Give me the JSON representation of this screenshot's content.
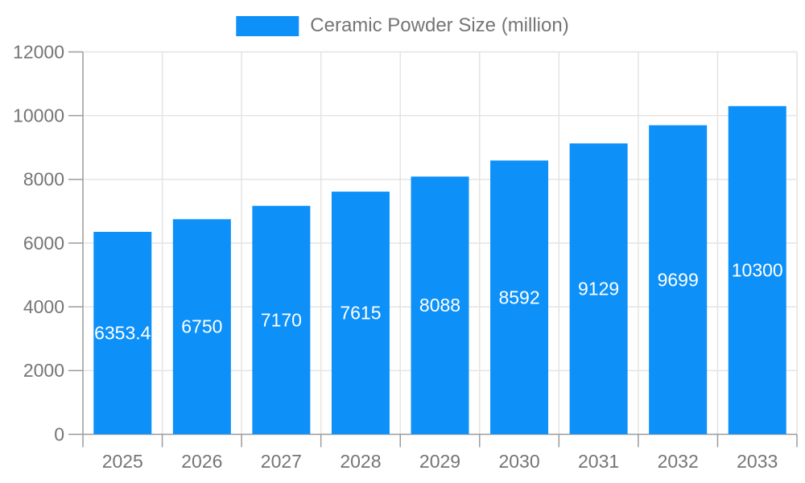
{
  "chart_data": {
    "type": "bar",
    "title": "Ceramic Powder Size (million)",
    "categories": [
      "2025",
      "2026",
      "2027",
      "2028",
      "2029",
      "2030",
      "2031",
      "2032",
      "2033"
    ],
    "values": [
      6353.4,
      6750,
      7170,
      7615,
      8088,
      8592,
      9129,
      9699,
      10300
    ],
    "value_labels": [
      "6353.4",
      "6750",
      "7170",
      "7615",
      "8088",
      "8592",
      "9129",
      "9699",
      "10300"
    ],
    "xlabel": "",
    "ylabel": "",
    "ylim": [
      0,
      12000
    ],
    "ytick_step": 2000,
    "ytick_labels": [
      "0",
      "2000",
      "4000",
      "6000",
      "8000",
      "10000",
      "12000"
    ],
    "grid": true,
    "legend": {
      "position": "top-center",
      "label": "Ceramic Powder Size (million)"
    },
    "colors": {
      "bar": "#0d90f8",
      "bar_value_label": "#ffffff",
      "axis_text": "#757575",
      "grid_line": "#e4e4e4",
      "axis_line": "#9b9b9b",
      "background": "#ffffff"
    }
  }
}
